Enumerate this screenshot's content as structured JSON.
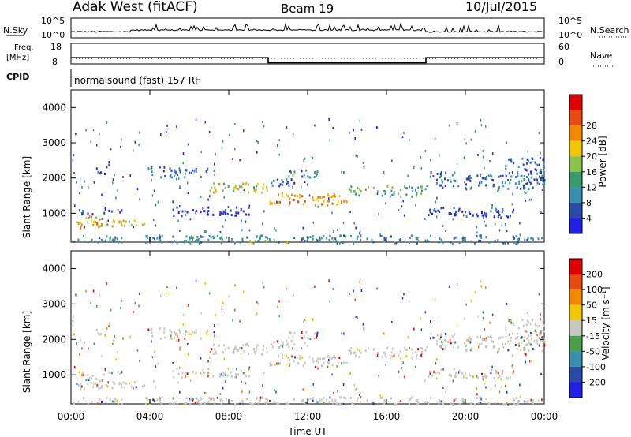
{
  "header": {
    "station": "Adak West (fitACF)",
    "beam": "Beam 19",
    "date": "10/Jul/2015"
  },
  "top_panels": {
    "nsky_label": "N.Sky",
    "nsearch_label": "N.Search",
    "nsky_ticks": [
      "10^5",
      "10^0"
    ],
    "nsearch_ticks": [
      "10^5",
      "10^0"
    ],
    "freq_label": [
      "Freq.",
      "[MHz]"
    ],
    "freq_ticks": [
      "18",
      "8"
    ],
    "nave_label": "Nave",
    "nave_ticks": [
      "60",
      "0"
    ],
    "cpid_label": "CPID",
    "cpid_text": "normalsound (fast) 157 RF"
  },
  "x_axis": {
    "label": "Time UT",
    "ticks": [
      "00:00",
      "04:00",
      "08:00",
      "12:00",
      "16:00",
      "20:00",
      "00:00"
    ]
  },
  "colors": {
    "power": [
      "#1f1fe6",
      "#2a4aa8",
      "#3a8fb0",
      "#3a9a6a",
      "#8bc34a",
      "#f2c600",
      "#f28a00",
      "#e84a10",
      "#e00000"
    ],
    "velocity": [
      "#1f1fe6",
      "#2a4aa8",
      "#3a8fb0",
      "#4aa04a",
      "#c8c8c0",
      "#f2c600",
      "#f28a00",
      "#e84a10",
      "#e00000"
    ]
  },
  "chart_data": [
    {
      "type": "line",
      "title": "N.Sky / N.Search",
      "x": [
        0,
        24
      ],
      "xlim": [
        0,
        24
      ],
      "note_series": [
        "N.Sky",
        "N.Search"
      ]
    },
    {
      "type": "line",
      "series": [
        {
          "name": "Freq.",
          "x": [
            0,
            10,
            10,
            18,
            18,
            24
          ],
          "values": [
            11,
            11,
            8.6,
            8.6,
            11,
            11
          ]
        }
      ],
      "ylim": [
        8,
        18
      ],
      "xlim": [
        0,
        24
      ]
    },
    {
      "type": "heatmap",
      "ylabel": "Slant Range [km]",
      "xlabel": "",
      "xlim": [
        0,
        24
      ],
      "ylim": [
        180,
        4500
      ],
      "yticks": [
        1000,
        2000,
        3000,
        4000
      ],
      "colorbar": {
        "label": "Power [dB]",
        "ticks": [
          4,
          8,
          12,
          16,
          20,
          24,
          28
        ],
        "range": [
          0,
          32
        ]
      },
      "echo_bands": [
        {
          "t0": 0.1,
          "t1": 1.6,
          "r0": 600,
          "r1": 950,
          "level": 26
        },
        {
          "t0": 1.4,
          "t1": 3.8,
          "r0": 650,
          "r1": 850,
          "level": 24
        },
        {
          "t0": 0.1,
          "t1": 2.5,
          "r0": 1000,
          "r1": 1150,
          "level": 8
        },
        {
          "t0": 1.0,
          "t1": 1.8,
          "r0": 2150,
          "r1": 2350,
          "level": 6
        },
        {
          "t0": 3.8,
          "t1": 7.0,
          "r0": 2050,
          "r1": 2350,
          "level": 10
        },
        {
          "t0": 7.0,
          "t1": 10.0,
          "r0": 1600,
          "r1": 1900,
          "level": 22
        },
        {
          "t0": 5.0,
          "t1": 9.0,
          "r0": 950,
          "r1": 1200,
          "level": 6
        },
        {
          "t0": 10.0,
          "t1": 14.0,
          "r0": 1250,
          "r1": 1600,
          "level": 28
        },
        {
          "t0": 11.0,
          "t1": 13.0,
          "r0": 2050,
          "r1": 2250,
          "level": 14
        },
        {
          "t0": 14.0,
          "t1": 18.0,
          "r0": 1500,
          "r1": 1800,
          "level": 16
        },
        {
          "t0": 10.0,
          "t1": 12.0,
          "r0": 1800,
          "r1": 2000,
          "level": 8
        },
        {
          "t0": 18.0,
          "t1": 24.0,
          "r0": 1700,
          "r1": 2200,
          "level": 10
        },
        {
          "t0": 18.0,
          "t1": 22.5,
          "r0": 900,
          "r1": 1200,
          "level": 6
        },
        {
          "t0": 22.0,
          "t1": 24.0,
          "r0": 2200,
          "r1": 2600,
          "level": 8
        },
        {
          "t0": 9.0,
          "t1": 11.0,
          "r0": 200,
          "r1": 300,
          "level": 22
        },
        {
          "t0": 0.0,
          "t1": 24.0,
          "r0": 180,
          "r1": 400,
          "level": 12
        }
      ]
    },
    {
      "type": "heatmap",
      "ylabel": "Slant Range [km]",
      "xlabel": "Time UT",
      "xlim": [
        0,
        24
      ],
      "ylim": [
        180,
        4500
      ],
      "yticks": [
        1000,
        2000,
        3000,
        4000
      ],
      "colorbar": {
        "label": "Velocity [m s⁻¹]",
        "ticks": [
          200,
          100,
          50,
          15,
          -15,
          -50,
          -100,
          -200
        ]
      }
    }
  ]
}
